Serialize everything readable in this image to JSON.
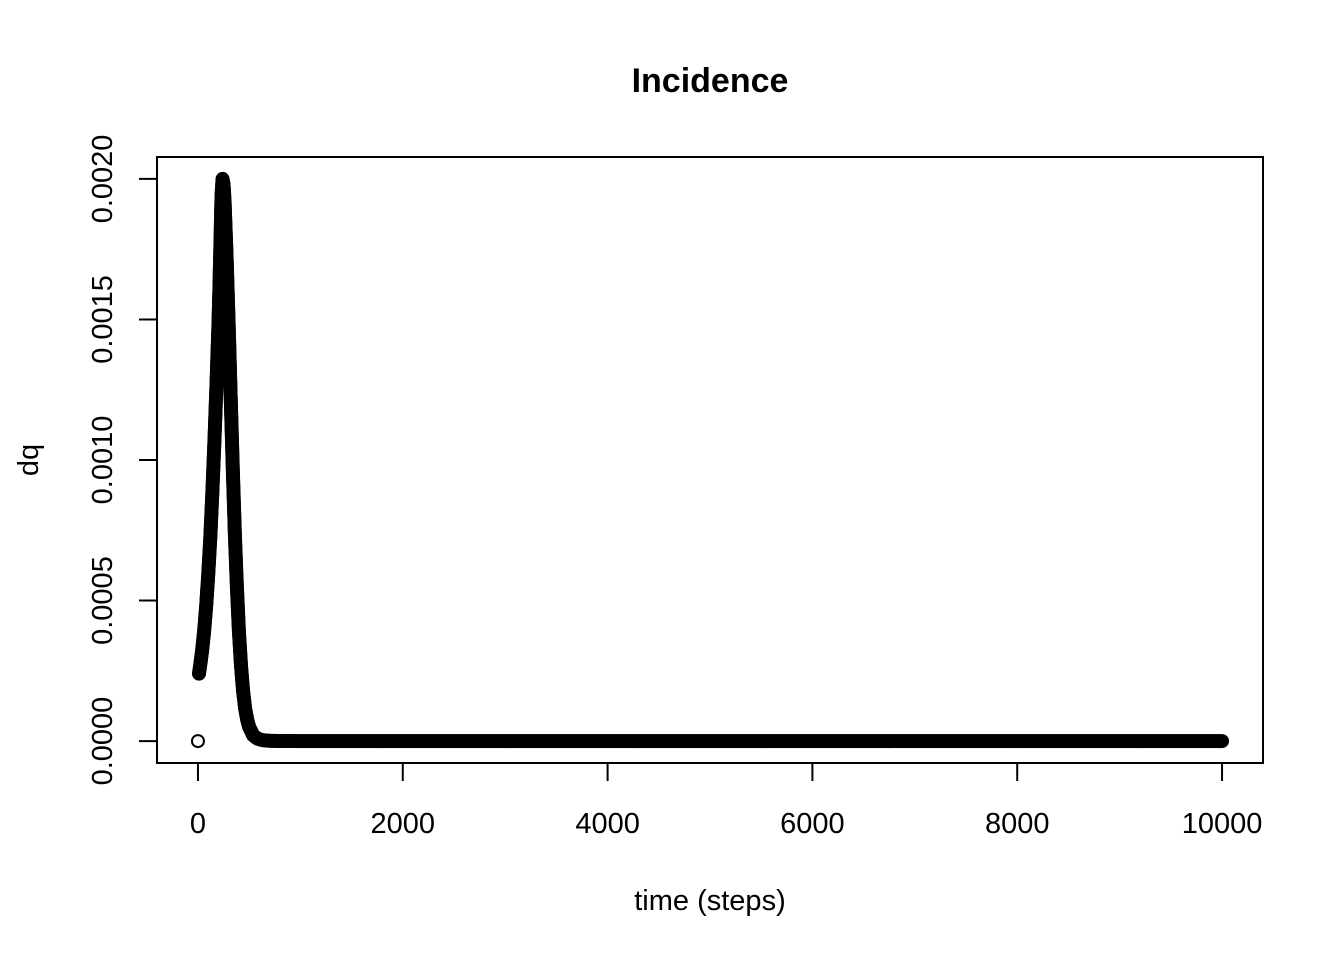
{
  "chart_data": {
    "type": "scatter",
    "title": "Incidence",
    "xlabel": "time (steps)",
    "ylabel": "dq",
    "xlim": [
      -400,
      10400
    ],
    "ylim": [
      -7.8e-05,
      0.002078
    ],
    "x_ticks": [
      0,
      2000,
      4000,
      6000,
      8000,
      10000
    ],
    "x_tick_labels": [
      "0",
      "2000",
      "4000",
      "6000",
      "8000",
      "10000"
    ],
    "y_ticks": [
      0,
      0.0005,
      0.001,
      0.0015,
      0.002
    ],
    "y_tick_labels": [
      "0.0000",
      "0.0005",
      "0.0010",
      "0.0015",
      "0.0020"
    ],
    "grid": false,
    "legend": "none",
    "marker": "open-circle",
    "series": [
      {
        "x": [
          0,
          10,
          20,
          40,
          60,
          80,
          100,
          120,
          140,
          160,
          180,
          200,
          210,
          220,
          230,
          240,
          250,
          260,
          280,
          300,
          320,
          340,
          360,
          380,
          400,
          420,
          440,
          460,
          480,
          500,
          540,
          580,
          620,
          660,
          700,
          800,
          1000,
          2000,
          4000,
          6000,
          8000,
          10000
        ],
        "y": [
          0,
          0.00024,
          0.000265,
          0.00032,
          0.00039,
          0.00048,
          0.00059,
          0.00072,
          0.00088,
          0.00106,
          0.00126,
          0.00148,
          0.00162,
          0.00178,
          0.00194,
          0.002,
          0.00198,
          0.00192,
          0.00172,
          0.00148,
          0.00122,
          0.00097,
          0.00074,
          0.00055,
          0.00039,
          0.00027,
          0.00018,
          0.000118,
          7.7e-05,
          5e-05,
          2e-05,
          9e-06,
          4e-06,
          2e-06,
          1e-06,
          2e-07,
          0,
          0,
          0,
          0,
          0,
          0
        ]
      }
    ]
  }
}
